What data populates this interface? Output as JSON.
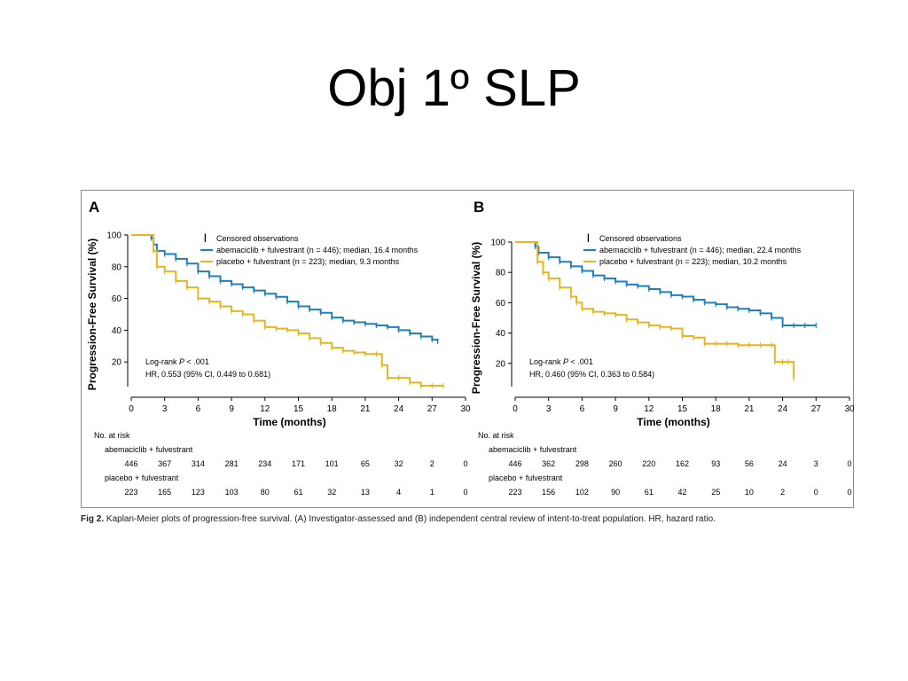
{
  "slide": {
    "title": "Obj 1º SLP"
  },
  "caption": {
    "label": "Fig 2.",
    "text": "Kaplan-Meier plots of progression-free survival. (A) Investigator-assessed and (B) independent central review of intent-to-treat population. HR, hazard ratio."
  },
  "colors": {
    "abemaciclib": "#1f7fbf",
    "placebo": "#e8b420"
  },
  "chart_data": [
    {
      "type": "line",
      "panel": "A",
      "ylabel": "Progression-Free Survival (%)",
      "xlabel": "Time (months)",
      "ylim": [
        0,
        100
      ],
      "xlim": [
        0,
        30
      ],
      "yticks": [
        20,
        40,
        60,
        80,
        100
      ],
      "xticks": [
        0,
        3,
        6,
        9,
        12,
        15,
        18,
        21,
        24,
        27,
        30
      ],
      "legend": {
        "censored": "Censored observations",
        "entries": [
          "abemaciclib + fulvestrant (n = 446); median, 16.4 months",
          "placebo + fulvestrant (n = 223); median, 9.3 months"
        ]
      },
      "annotation": {
        "logrank_prefix": "Log-rank ",
        "logrank_p": "P",
        "logrank_suffix": " < .001",
        "hr": "HR, 0.553 (95% CI, 0.449 to 0.681)"
      },
      "series": [
        {
          "name": "abemaciclib + fulvestrant",
          "color": "#1f7fbf",
          "x": [
            0,
            1.5,
            1.8,
            2,
            2.3,
            3,
            4,
            5,
            6,
            7,
            8,
            9,
            10,
            11,
            12,
            13,
            14,
            15,
            16,
            17,
            18,
            19,
            20,
            21,
            22,
            23,
            24,
            25,
            26,
            27,
            27.5
          ],
          "y": [
            100,
            100,
            98,
            94,
            90,
            88,
            85,
            82,
            77,
            74,
            71,
            69,
            67,
            65,
            63,
            61,
            58,
            55,
            53,
            51,
            48,
            46,
            45,
            44,
            43,
            42,
            40,
            38,
            36,
            34,
            33
          ]
        },
        {
          "name": "placebo + fulvestrant",
          "color": "#e8b420",
          "x": [
            0,
            1.5,
            2,
            2.3,
            3,
            4,
            5,
            6,
            7,
            8,
            9,
            10,
            11,
            12,
            13,
            14,
            15,
            16,
            17,
            18,
            19,
            20,
            21,
            22,
            22.5,
            23,
            24,
            25,
            26,
            27,
            28
          ],
          "y": [
            100,
            100,
            90,
            80,
            77,
            71,
            67,
            60,
            58,
            55,
            52,
            50,
            46,
            42,
            41,
            40,
            38,
            35,
            32,
            29,
            27,
            26,
            25,
            25,
            18,
            10,
            10,
            7,
            5,
            5,
            5
          ]
        }
      ],
      "at_risk": {
        "title": "No. at risk",
        "rows": [
          {
            "label": "abemaciclib + fulvestrant",
            "values": [
              "446",
              "367",
              "314",
              "281",
              "234",
              "171",
              "101",
              "65",
              "32",
              "2",
              "0"
            ]
          },
          {
            "label": "placebo + fulvestrant",
            "values": [
              "223",
              "165",
              "123",
              "103",
              "80",
              "61",
              "32",
              "13",
              "4",
              "1",
              "0"
            ]
          }
        ]
      }
    },
    {
      "type": "line",
      "panel": "B",
      "ylabel": "Progression-Free Survival (%)",
      "xlabel": "Time (months)",
      "ylim": [
        0,
        100
      ],
      "xlim": [
        0,
        30
      ],
      "yticks": [
        20,
        40,
        60,
        80,
        100
      ],
      "xticks": [
        0,
        3,
        6,
        9,
        12,
        15,
        18,
        21,
        24,
        27,
        30
      ],
      "legend": {
        "censored": "Censored observations",
        "entries": [
          "abemaciclib + fulvestrant (n = 446); median, 22.4 months",
          "placebo + fulvestrant (n = 223); median, 10.2 months"
        ]
      },
      "annotation": {
        "logrank_prefix": "Log-rank ",
        "logrank_p": "P",
        "logrank_suffix": " < .001",
        "hr": "HR, 0.460 (95% CI, 0.363 to 0.584)"
      },
      "series": [
        {
          "name": "abemaciclib + fulvestrant",
          "color": "#1f7fbf",
          "x": [
            0,
            1.5,
            1.8,
            2.1,
            3,
            4,
            5,
            6,
            7,
            8,
            9,
            10,
            11,
            12,
            13,
            14,
            15,
            16,
            17,
            18,
            19,
            20,
            21,
            22,
            23,
            24,
            25,
            26,
            27
          ],
          "y": [
            100,
            100,
            97,
            93,
            90,
            87,
            84,
            81,
            78,
            76,
            74,
            72,
            71,
            69,
            67,
            65,
            64,
            62,
            60,
            59,
            57,
            56,
            55,
            53,
            50,
            45,
            45,
            45,
            45
          ]
        },
        {
          "name": "placebo + fulvestrant",
          "color": "#e8b420",
          "x": [
            0,
            1.5,
            2,
            2.5,
            3,
            4,
            5,
            5.5,
            6,
            7,
            8,
            9,
            10,
            11,
            12,
            13,
            14,
            15,
            16,
            17,
            18,
            19,
            20,
            21,
            22,
            23,
            23.3,
            24,
            24.5,
            25
          ],
          "y": [
            100,
            100,
            87,
            80,
            76,
            70,
            64,
            60,
            56,
            54,
            53,
            52,
            49,
            47,
            45,
            44,
            43,
            38,
            37,
            33,
            33,
            33,
            32,
            32,
            32,
            32,
            21,
            21,
            21,
            10
          ]
        }
      ],
      "at_risk": {
        "title": "No. at risk",
        "rows": [
          {
            "label": "abemaciclib + fulvestrant",
            "values": [
              "446",
              "362",
              "298",
              "260",
              "220",
              "162",
              "93",
              "56",
              "24",
              "3",
              "0"
            ]
          },
          {
            "label": "placebo + fulvestrant",
            "values": [
              "223",
              "156",
              "102",
              "90",
              "61",
              "42",
              "25",
              "10",
              "2",
              "0",
              "0"
            ]
          }
        ]
      }
    }
  ]
}
